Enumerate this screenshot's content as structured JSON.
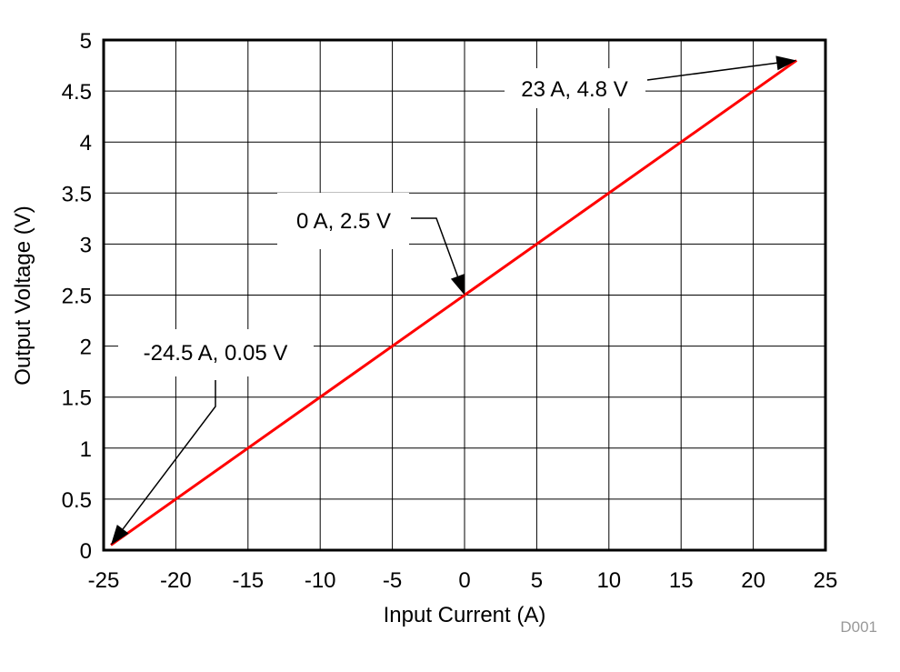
{
  "chart_data": {
    "type": "line",
    "title": "",
    "xlabel": "Input Current (A)",
    "ylabel": "Output Voltage (V)",
    "xlim": [
      -25,
      25
    ],
    "ylim": [
      0,
      5
    ],
    "xticks": [
      "-25",
      "-20",
      "-15",
      "-10",
      "-5",
      "0",
      "5",
      "10",
      "15",
      "20",
      "25"
    ],
    "yticks": [
      "0",
      "0.5",
      "1",
      "1.5",
      "2",
      "2.5",
      "3",
      "3.5",
      "4",
      "4.5",
      "5"
    ],
    "grid": true,
    "series": [
      {
        "color": "#ff0000",
        "x": [
          -24.5,
          23
        ],
        "y": [
          0.05,
          4.8
        ]
      }
    ],
    "annotations": [
      {
        "text": "23 A, 4.8 V",
        "x": 23,
        "y": 4.8
      },
      {
        "text": "0 A, 2.5 V",
        "x": 0,
        "y": 2.5
      },
      {
        "text": "-24.5 A, 0.05 V",
        "x": -24.5,
        "y": 0.05
      }
    ],
    "figure_id": "D001"
  }
}
